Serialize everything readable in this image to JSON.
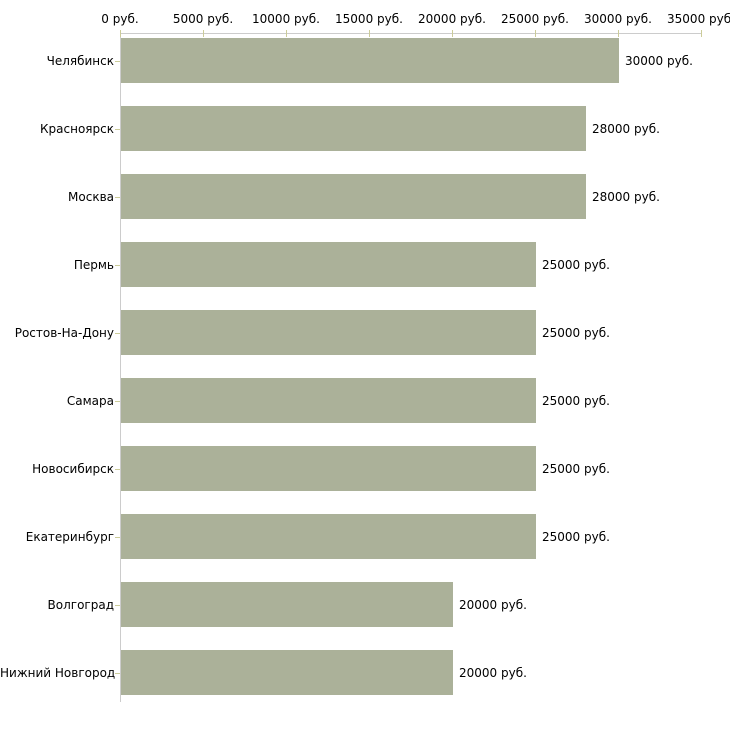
{
  "chart_data": {
    "type": "bar",
    "orientation": "horizontal",
    "title": "",
    "xlabel": "",
    "ylabel": "",
    "categories": [
      "Челябинск",
      "Красноярск",
      "Москва",
      "Пермь",
      "Ростов-На-Дону",
      "Самара",
      "Новосибирск",
      "Екатеринбург",
      "Волгоград",
      "Нижний Новгород"
    ],
    "values": [
      30000,
      28000,
      28000,
      25000,
      25000,
      25000,
      25000,
      25000,
      20000,
      20000
    ],
    "value_labels": [
      "30000 руб.",
      "28000 руб.",
      "28000 руб.",
      "25000 руб.",
      "25000 руб.",
      "25000 руб.",
      "25000 руб.",
      "25000 руб.",
      "20000 руб.",
      "20000 руб."
    ],
    "x_ticks": [
      0,
      5000,
      10000,
      15000,
      20000,
      25000,
      30000,
      35000
    ],
    "x_tick_labels": [
      "0 руб.",
      "5000 руб.",
      "10000 руб.",
      "15000 руб.",
      "20000 руб.",
      "25000 руб.",
      "30000 руб.",
      "35000 руб."
    ],
    "xlim": [
      0,
      35000
    ],
    "unit_suffix": " руб.",
    "grid": false,
    "legend": null,
    "colors": {
      "bar": "#abb199",
      "axis": "#cccccc",
      "tick": "#cccc99",
      "text": "#000000",
      "background": "#ffffff"
    }
  }
}
